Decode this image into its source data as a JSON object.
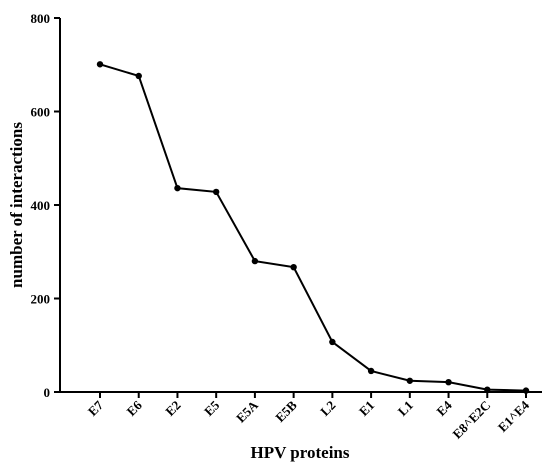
{
  "chart_data": {
    "type": "line",
    "x_label": "HPV proteins",
    "y_label": "number of interactions",
    "categories": [
      "E7",
      "E6",
      "E2",
      "E5",
      "E5A",
      "E5B",
      "L2",
      "E1",
      "L1",
      "E4",
      "E8^E2C",
      "E1^E4"
    ],
    "series": [
      {
        "color": "#000000",
        "values": [
          701,
          676,
          436,
          428,
          280,
          267,
          107,
          45,
          24,
          21,
          5,
          3
        ]
      }
    ],
    "ylim": [
      0,
      800
    ],
    "yticks": [
      0,
      200,
      400,
      600,
      800
    ]
  }
}
